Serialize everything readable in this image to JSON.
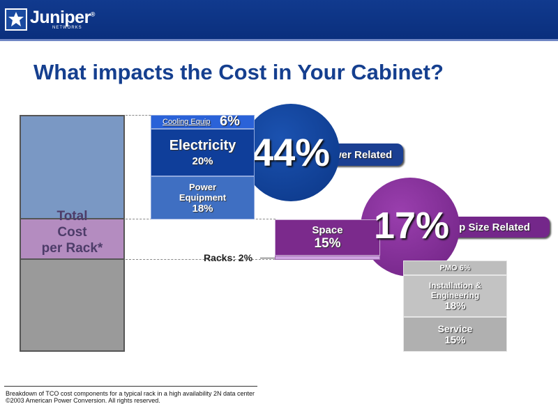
{
  "header": {
    "brand": "Juniper",
    "brand_sub": "NETWORKS",
    "registered": "®"
  },
  "slide": {
    "title": "What impacts the Cost in Your Cabinet?"
  },
  "total_bar": {
    "label_line1": "Total",
    "label_line2": "Cost",
    "label_line3": "per Rack*"
  },
  "power_group": {
    "cooling_label": "Cooling Equip",
    "cooling_value": "6%",
    "electricity_label": "Electricity",
    "electricity_value": "20%",
    "power_equip_label_1": "Power",
    "power_equip_label_2": "Equipment",
    "power_equip_value": "18%",
    "circle_value": "44%",
    "banner_text": "wer Related"
  },
  "space_group": {
    "space_label": "Space",
    "space_value": "15%",
    "circle_value": "17%",
    "banner_text": "ip Size Related",
    "racks_label": "Racks: 2%"
  },
  "service_group": {
    "pmo_label": "PMO 6%",
    "install_label_1": "Installation &",
    "install_label_2": "Engineering",
    "install_value": "18%",
    "service_label": "Service",
    "service_value": "15%"
  },
  "footer": {
    "line1": "Breakdown of TCO cost components for a typical rack in a high availability 2N data center",
    "line2": "©2003 American Power Conversion. All rights reserved."
  },
  "colors": {
    "header_blue": "#0f3785",
    "title_blue": "#153f8f",
    "power_blue": "#0f4aa8",
    "purple": "#7b2a8c",
    "gray_block": "#b4b4b4"
  }
}
